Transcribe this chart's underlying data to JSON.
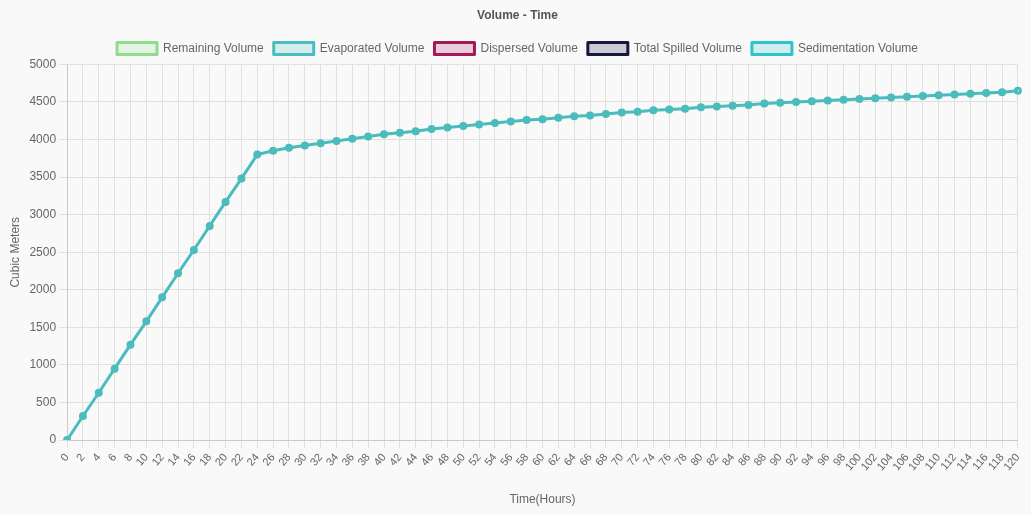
{
  "chart_data": {
    "type": "line",
    "title": "Volume - Time",
    "xlabel": "Time(Hours)",
    "ylabel": "Cubic Meters",
    "categories": [
      "0",
      "2",
      "4",
      "6",
      "8",
      "10",
      "12",
      "14",
      "16",
      "18",
      "20",
      "22",
      "24",
      "26",
      "28",
      "30",
      "32",
      "34",
      "36",
      "38",
      "40",
      "42",
      "44",
      "46",
      "48",
      "50",
      "52",
      "54",
      "56",
      "58",
      "60",
      "62",
      "64",
      "66",
      "68",
      "70",
      "72",
      "74",
      "76",
      "78",
      "80",
      "82",
      "84",
      "86",
      "88",
      "90",
      "92",
      "94",
      "96",
      "98",
      "100",
      "102",
      "104",
      "106",
      "108",
      "110",
      "112",
      "114",
      "116",
      "118",
      "120"
    ],
    "series": [
      {
        "name": "Remaining Volume",
        "color": "#8fdc8f",
        "values": [
          null,
          null,
          null,
          null,
          null,
          null,
          null,
          null,
          null,
          null,
          null,
          null,
          null,
          null,
          null,
          null,
          null,
          null,
          null,
          null,
          null,
          null,
          null,
          null,
          null,
          null,
          null,
          null,
          null,
          null,
          null,
          null,
          null,
          null,
          null,
          null,
          null,
          null,
          null,
          null,
          null,
          null,
          null,
          null,
          null,
          null,
          null,
          null,
          null,
          null,
          null,
          null,
          null,
          null,
          null,
          null,
          null,
          null,
          null,
          null,
          null
        ]
      },
      {
        "name": "Evaporated Volume",
        "color": "#4bbcbd",
        "values": [
          0,
          320,
          630,
          950,
          1270,
          1580,
          1900,
          2220,
          2530,
          2850,
          3170,
          3480,
          3800,
          3850,
          3890,
          3920,
          3950,
          3980,
          4010,
          4040,
          4070,
          4090,
          4110,
          4140,
          4160,
          4180,
          4200,
          4220,
          4240,
          4260,
          4270,
          4290,
          4310,
          4320,
          4340,
          4360,
          4370,
          4390,
          4400,
          4410,
          4430,
          4440,
          4450,
          4460,
          4480,
          4490,
          4500,
          4510,
          4520,
          4530,
          4540,
          4550,
          4560,
          4570,
          4580,
          4590,
          4600,
          4610,
          4620,
          4630,
          4650
        ]
      },
      {
        "name": "Dispersed Volume",
        "color": "#a3195b",
        "values": [
          null,
          null,
          null,
          null,
          null,
          null,
          null,
          null,
          null,
          null,
          null,
          null,
          null,
          null,
          null,
          null,
          null,
          null,
          null,
          null,
          null,
          null,
          null,
          null,
          null,
          null,
          null,
          null,
          null,
          null,
          null,
          null,
          null,
          null,
          null,
          null,
          null,
          null,
          null,
          null,
          null,
          null,
          null,
          null,
          null,
          null,
          null,
          null,
          null,
          null,
          null,
          null,
          null,
          null,
          null,
          null,
          null,
          null,
          null,
          null,
          null
        ]
      },
      {
        "name": "Total Spilled Volume",
        "color": "#16163f",
        "values": [
          null,
          null,
          null,
          null,
          null,
          null,
          null,
          null,
          null,
          null,
          null,
          null,
          null,
          null,
          null,
          null,
          null,
          null,
          null,
          null,
          null,
          null,
          null,
          null,
          null,
          null,
          null,
          null,
          null,
          null,
          null,
          null,
          null,
          null,
          null,
          null,
          null,
          null,
          null,
          null,
          null,
          null,
          null,
          null,
          null,
          null,
          null,
          null,
          null,
          null,
          null,
          null,
          null,
          null,
          null,
          null,
          null,
          null,
          null,
          null,
          null
        ]
      },
      {
        "name": "Sedimentation Volume",
        "color": "#2ec4c9",
        "values": [
          null,
          null,
          null,
          null,
          null,
          null,
          null,
          null,
          null,
          null,
          null,
          null,
          null,
          null,
          null,
          null,
          null,
          null,
          null,
          null,
          null,
          null,
          null,
          null,
          null,
          null,
          null,
          null,
          null,
          null,
          null,
          null,
          null,
          null,
          null,
          null,
          null,
          null,
          null,
          null,
          null,
          null,
          null,
          null,
          null,
          null,
          null,
          null,
          null,
          null,
          null,
          null,
          null,
          null,
          null,
          null,
          null,
          null,
          null,
          null,
          null
        ]
      }
    ],
    "ylim": [
      0,
      5000
    ],
    "yticks": [
      0,
      500,
      1000,
      1500,
      2000,
      2500,
      3000,
      3500,
      4000,
      4500,
      5000
    ],
    "grid": true,
    "legend": "top",
    "marker": "circle",
    "line_style": "solid"
  }
}
